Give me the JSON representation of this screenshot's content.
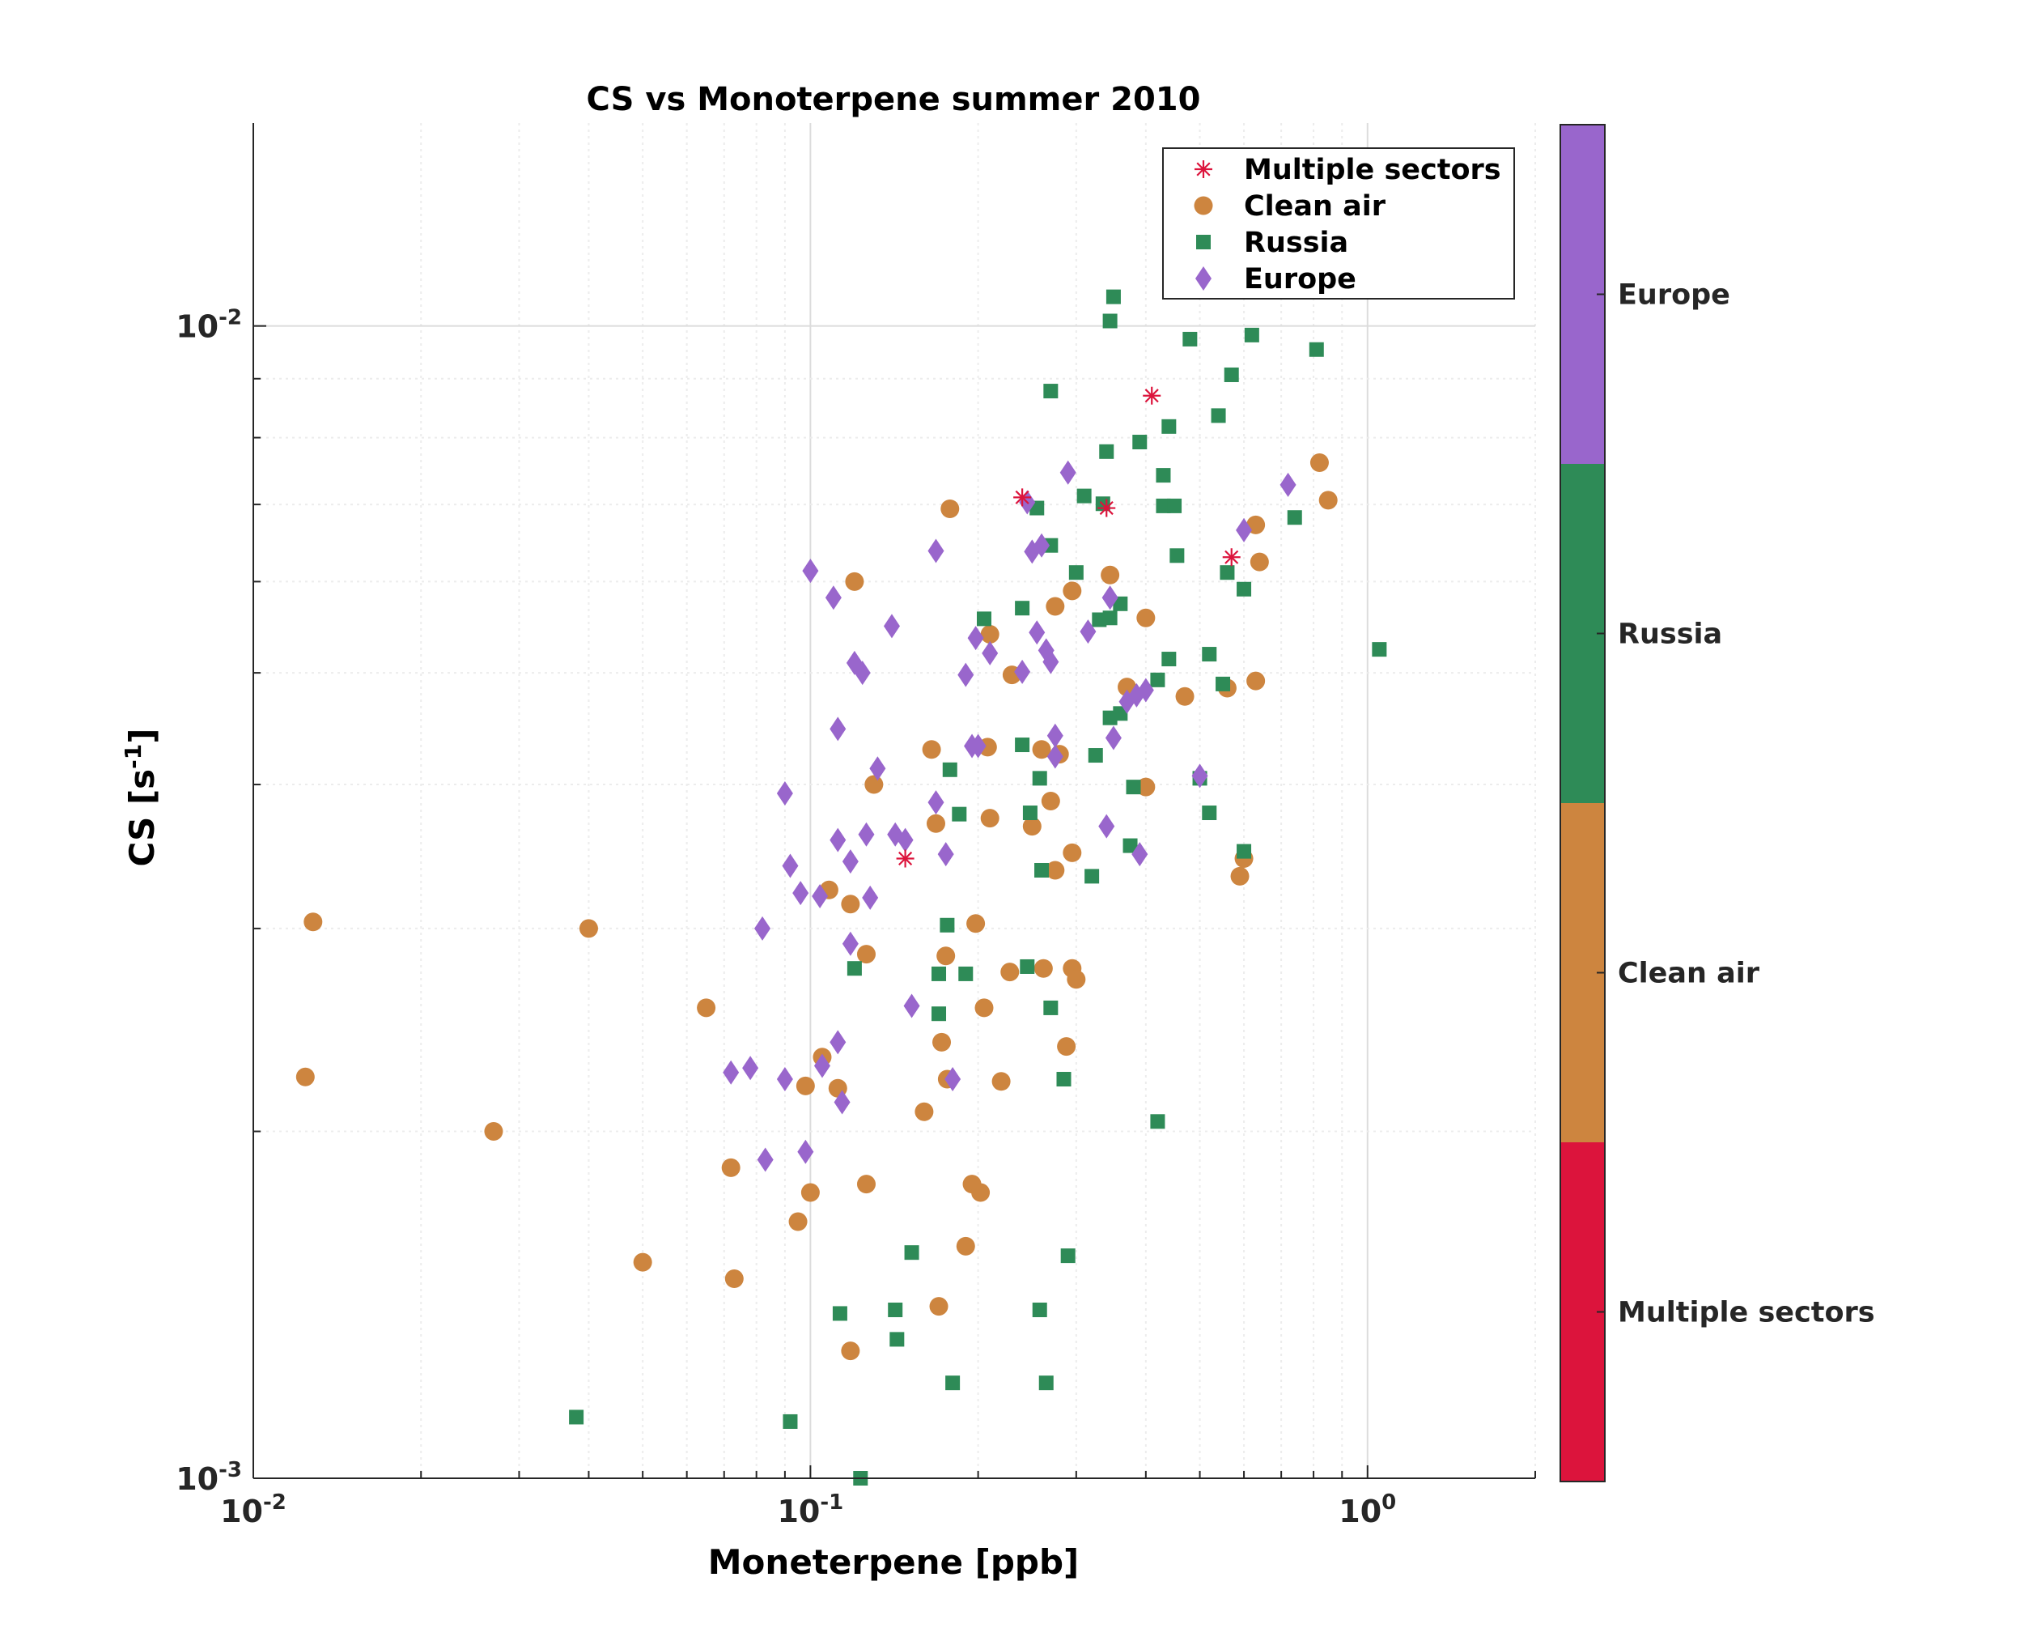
{
  "chart_data": {
    "type": "scatter",
    "title": "CS vs Monoterpene summer 2010",
    "xlabel": "Moneterpene [ppb]",
    "ylabel": "CS [s",
    "ylabel_exp": "-1",
    "ylabel_end": "]",
    "x_scale": "log",
    "y_scale": "log",
    "xlim": [
      0.01,
      2.0
    ],
    "ylim": [
      0.001,
      0.015
    ],
    "grid": true,
    "legend_position": "top-right",
    "x_ticks": [
      {
        "value": 0.01,
        "base": "10",
        "exp": "-2"
      },
      {
        "value": 0.1,
        "base": "10",
        "exp": "-1"
      },
      {
        "value": 1,
        "base": "10",
        "exp": "0"
      }
    ],
    "y_ticks": [
      {
        "value": 0.001,
        "base": "10",
        "exp": "-3"
      },
      {
        "value": 0.01,
        "base": "10",
        "exp": "-2"
      }
    ],
    "colorbar": {
      "labels": [
        "Multiple sectors",
        "Clean air",
        "Russia",
        "Europe"
      ],
      "colors": [
        "#dc143c",
        "#cd853f",
        "#2e8b57",
        "#9966cc"
      ]
    },
    "series": [
      {
        "name": "Multiple sectors",
        "marker": "asterisk",
        "color": "#dc143c",
        "points": [
          [
            0.24,
            0.0071
          ],
          [
            0.34,
            0.00695
          ],
          [
            0.41,
            0.0087
          ],
          [
            0.57,
            0.0063
          ],
          [
            0.148,
            0.00345
          ]
        ]
      },
      {
        "name": "Clean air",
        "marker": "circle",
        "color": "#cd853f",
        "points": [
          [
            0.0128,
            0.00304
          ],
          [
            0.0124,
            0.00223
          ],
          [
            0.04,
            0.003
          ],
          [
            0.027,
            0.002
          ],
          [
            0.065,
            0.00256
          ],
          [
            0.05,
            0.00154
          ],
          [
            0.073,
            0.00149
          ],
          [
            0.072,
            0.00186
          ],
          [
            0.105,
            0.00232
          ],
          [
            0.098,
            0.00219
          ],
          [
            0.112,
            0.00218
          ],
          [
            0.1,
            0.00177
          ],
          [
            0.095,
            0.00167
          ],
          [
            0.126,
            0.0018
          ],
          [
            0.118,
            0.00129
          ],
          [
            0.108,
            0.00324
          ],
          [
            0.118,
            0.00315
          ],
          [
            0.126,
            0.00285
          ],
          [
            0.13,
            0.004
          ],
          [
            0.12,
            0.006
          ],
          [
            0.16,
            0.00208
          ],
          [
            0.165,
            0.00429
          ],
          [
            0.168,
            0.0037
          ],
          [
            0.17,
            0.00141
          ],
          [
            0.172,
            0.00239
          ],
          [
            0.175,
            0.00284
          ],
          [
            0.176,
            0.00222
          ],
          [
            0.178,
            0.00694
          ],
          [
            0.19,
            0.00159
          ],
          [
            0.195,
            0.0018
          ],
          [
            0.198,
            0.00303
          ],
          [
            0.202,
            0.00177
          ],
          [
            0.205,
            0.00256
          ],
          [
            0.208,
            0.00431
          ],
          [
            0.21,
            0.0054
          ],
          [
            0.21,
            0.00374
          ],
          [
            0.22,
            0.00221
          ],
          [
            0.228,
            0.00275
          ],
          [
            0.23,
            0.00498
          ],
          [
            0.25,
            0.00368
          ],
          [
            0.26,
            0.00429
          ],
          [
            0.262,
            0.00277
          ],
          [
            0.27,
            0.00387
          ],
          [
            0.275,
            0.00337
          ],
          [
            0.275,
            0.00571
          ],
          [
            0.28,
            0.00425
          ],
          [
            0.288,
            0.00237
          ],
          [
            0.295,
            0.00349
          ],
          [
            0.295,
            0.00589
          ],
          [
            0.295,
            0.00277
          ],
          [
            0.3,
            0.00271
          ],
          [
            0.345,
            0.00608
          ],
          [
            0.37,
            0.00486
          ],
          [
            0.4,
            0.00558
          ],
          [
            0.4,
            0.00398
          ],
          [
            0.47,
            0.00477
          ],
          [
            0.56,
            0.00485
          ],
          [
            0.59,
            0.00333
          ],
          [
            0.6,
            0.00345
          ],
          [
            0.63,
            0.00672
          ],
          [
            0.63,
            0.00492
          ],
          [
            0.64,
            0.00624
          ],
          [
            0.82,
            0.00761
          ],
          [
            0.85,
            0.00706
          ]
        ]
      },
      {
        "name": "Russia",
        "marker": "square",
        "color": "#2e8b57",
        "points": [
          [
            0.038,
            0.00113
          ],
          [
            0.092,
            0.00112
          ],
          [
            0.113,
            0.00139
          ],
          [
            0.12,
            0.00277
          ],
          [
            0.123,
            0.001
          ],
          [
            0.142,
            0.0014
          ],
          [
            0.143,
            0.00132
          ],
          [
            0.152,
            0.00157
          ],
          [
            0.17,
            0.00274
          ],
          [
            0.17,
            0.00253
          ],
          [
            0.176,
            0.00302
          ],
          [
            0.178,
            0.00412
          ],
          [
            0.18,
            0.00121
          ],
          [
            0.185,
            0.00377
          ],
          [
            0.19,
            0.00274
          ],
          [
            0.205,
            0.00557
          ],
          [
            0.24,
            0.00433
          ],
          [
            0.24,
            0.00569
          ],
          [
            0.245,
            0.00278
          ],
          [
            0.248,
            0.00378
          ],
          [
            0.255,
            0.00695
          ],
          [
            0.258,
            0.00405
          ],
          [
            0.258,
            0.0014
          ],
          [
            0.26,
            0.00337
          ],
          [
            0.265,
            0.00121
          ],
          [
            0.27,
            0.00256
          ],
          [
            0.27,
            0.00645
          ],
          [
            0.27,
            0.00878
          ],
          [
            0.285,
            0.00222
          ],
          [
            0.29,
            0.00156
          ],
          [
            0.3,
            0.00611
          ],
          [
            0.31,
            0.00712
          ],
          [
            0.32,
            0.00333
          ],
          [
            0.325,
            0.00424
          ],
          [
            0.33,
            0.00556
          ],
          [
            0.335,
            0.00701
          ],
          [
            0.34,
            0.00778
          ],
          [
            0.345,
            0.00558
          ],
          [
            0.345,
            0.00457
          ],
          [
            0.345,
            0.0101
          ],
          [
            0.35,
            0.0106
          ],
          [
            0.36,
            0.00574
          ],
          [
            0.36,
            0.00461
          ],
          [
            0.375,
            0.00354
          ],
          [
            0.38,
            0.00398
          ],
          [
            0.39,
            0.00793
          ],
          [
            0.42,
            0.00493
          ],
          [
            0.42,
            0.00204
          ],
          [
            0.43,
            0.00742
          ],
          [
            0.43,
            0.00698
          ],
          [
            0.44,
            0.00818
          ],
          [
            0.44,
            0.00514
          ],
          [
            0.45,
            0.00698
          ],
          [
            0.455,
            0.00632
          ],
          [
            0.48,
            0.00974
          ],
          [
            0.5,
            0.00405
          ],
          [
            0.52,
            0.00378
          ],
          [
            0.52,
            0.00519
          ],
          [
            0.54,
            0.00836
          ],
          [
            0.55,
            0.00489
          ],
          [
            0.56,
            0.00611
          ],
          [
            0.57,
            0.00907
          ],
          [
            0.6,
            0.00591
          ],
          [
            0.6,
            0.0035
          ],
          [
            0.62,
            0.00982
          ],
          [
            0.74,
            0.00682
          ],
          [
            0.81,
            0.00954
          ],
          [
            1.05,
            0.00524
          ]
        ]
      },
      {
        "name": "Europe",
        "marker": "diamond",
        "color": "#9966cc",
        "points": [
          [
            0.072,
            0.00225
          ],
          [
            0.078,
            0.00227
          ],
          [
            0.082,
            0.003
          ],
          [
            0.083,
            0.00189
          ],
          [
            0.09,
            0.00222
          ],
          [
            0.09,
            0.00393
          ],
          [
            0.092,
            0.0034
          ],
          [
            0.096,
            0.00322
          ],
          [
            0.098,
            0.00192
          ],
          [
            0.1,
            0.00613
          ],
          [
            0.104,
            0.0032
          ],
          [
            0.105,
            0.00228
          ],
          [
            0.11,
            0.00581
          ],
          [
            0.112,
            0.00447
          ],
          [
            0.112,
            0.00358
          ],
          [
            0.112,
            0.00239
          ],
          [
            0.114,
            0.00212
          ],
          [
            0.118,
            0.00343
          ],
          [
            0.118,
            0.00291
          ],
          [
            0.12,
            0.0051
          ],
          [
            0.124,
            0.005
          ],
          [
            0.126,
            0.00362
          ],
          [
            0.128,
            0.00319
          ],
          [
            0.132,
            0.00413
          ],
          [
            0.14,
            0.00549
          ],
          [
            0.142,
            0.00362
          ],
          [
            0.148,
            0.00358
          ],
          [
            0.152,
            0.00257
          ],
          [
            0.168,
            0.00638
          ],
          [
            0.168,
            0.00386
          ],
          [
            0.175,
            0.00348
          ],
          [
            0.18,
            0.00222
          ],
          [
            0.19,
            0.00498
          ],
          [
            0.195,
            0.00432
          ],
          [
            0.198,
            0.00536
          ],
          [
            0.2,
            0.00432
          ],
          [
            0.21,
            0.0052
          ],
          [
            0.24,
            0.00501
          ],
          [
            0.245,
            0.00703
          ],
          [
            0.25,
            0.00637
          ],
          [
            0.255,
            0.00542
          ],
          [
            0.26,
            0.00645
          ],
          [
            0.265,
            0.00523
          ],
          [
            0.27,
            0.00511
          ],
          [
            0.275,
            0.00441
          ],
          [
            0.275,
            0.00423
          ],
          [
            0.29,
            0.00746
          ],
          [
            0.315,
            0.00543
          ],
          [
            0.34,
            0.00368
          ],
          [
            0.345,
            0.00581
          ],
          [
            0.35,
            0.00439
          ],
          [
            0.37,
            0.00472
          ],
          [
            0.385,
            0.00478
          ],
          [
            0.39,
            0.00348
          ],
          [
            0.4,
            0.00483
          ],
          [
            0.5,
            0.00407
          ],
          [
            0.6,
            0.00665
          ],
          [
            0.72,
            0.00728
          ]
        ]
      }
    ]
  }
}
